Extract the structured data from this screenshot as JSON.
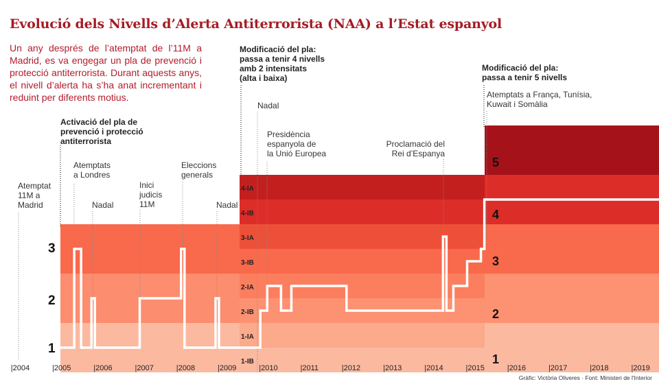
{
  "title": "Evolució dels Nivells d’Alerta Antiterrorista (NAA) a l’Estat espanyol",
  "intro": "Un any després de l’atemptat de l’11M a Madrid, es va engegar un pla de prevenció i protecció antiterrorista. Durant aquests anys, el nivell d’alerta ha s’ha anat incrementant i reduint per diferents motius.",
  "credit": "Gràfic: Victòria Oliveres · Font: Ministeri de l'Interior",
  "chart_data": {
    "type": "line",
    "step": true,
    "title": "Evolució dels Nivells d’Alerta Antiterrorista (NAA) a l’Estat espanyol",
    "x_ticks": [
      "2004",
      "2005",
      "2006",
      "2007",
      "2008",
      "2009",
      "2010",
      "2011",
      "2012",
      "2013",
      "2014",
      "2015",
      "2016",
      "2017",
      "2018",
      "2019"
    ],
    "grid": false,
    "line_color": "#ffffff",
    "series": [
      {
        "points": [
          [
            "2005-03",
            "1"
          ],
          [
            "2005-07",
            "3"
          ],
          [
            "2005-09",
            "1"
          ],
          [
            "2005-12",
            "2"
          ],
          [
            "2006-01",
            "1"
          ],
          [
            "2007-02",
            "2"
          ],
          [
            "2008-02",
            "3"
          ],
          [
            "2008-03",
            "1"
          ],
          [
            "2008-12",
            "2"
          ],
          [
            "2009-01",
            "1"
          ],
          [
            "2010-01",
            "2-IB"
          ],
          [
            "2010-03",
            "2-IA"
          ],
          [
            "2010-07",
            "2-IB"
          ],
          [
            "2010-10",
            "2-IA"
          ],
          [
            "2012-02",
            "2-IB"
          ],
          [
            "2014-06",
            "3-IA"
          ],
          [
            "2014-07",
            "2-IB"
          ],
          [
            "2014-09",
            "2-IA"
          ],
          [
            "2015-01",
            "3-IB"
          ],
          [
            "2015-05",
            "3"
          ],
          [
            "2015-06",
            "4"
          ],
          [
            "2019-09",
            "4"
          ]
        ]
      }
    ],
    "periods": [
      {
        "from": "2005-03",
        "to": "2009-07",
        "levels": [
          {
            "label": "1",
            "color": "#fbb9a0"
          },
          {
            "label": "2",
            "color": "#fc8d6f"
          },
          {
            "label": "3",
            "color": "#f9694b"
          }
        ]
      },
      {
        "from": "2009-07",
        "to": "2015-06",
        "levels": [
          {
            "label": "1-IB",
            "color": "#fbb9a0"
          },
          {
            "label": "1-IA",
            "color": "#fbaa8c"
          },
          {
            "label": "2-IB",
            "color": "#fc9272"
          },
          {
            "label": "2-IA",
            "color": "#fb7f5f"
          },
          {
            "label": "3-IB",
            "color": "#f9694b"
          },
          {
            "label": "3-IA",
            "color": "#ed5039"
          },
          {
            "label": "4-IB",
            "color": "#dc2d28"
          },
          {
            "label": "4-IA",
            "color": "#c41f1f"
          }
        ]
      },
      {
        "from": "2015-06",
        "to": "2019-09",
        "levels": [
          {
            "label": "1",
            "color": "#fbb9a0"
          },
          {
            "label": "2",
            "color": "#fc9272"
          },
          {
            "label": "3",
            "color": "#f9694b"
          },
          {
            "label": "4",
            "color": "#dc2d28"
          },
          {
            "label": "5",
            "color": "#a51219"
          }
        ]
      }
    ],
    "annotations": [
      {
        "date": "2004-03",
        "text": "Atemptat\n11M a\nMadrid"
      },
      {
        "date": "2005-03",
        "text": "Activació del pla de\nprevenció i protecció\nantiterrorista",
        "bold": true
      },
      {
        "date": "2005-07",
        "text": "Atemptats\na Londres"
      },
      {
        "date": "2005-12",
        "text": "Nadal"
      },
      {
        "date": "2007-02",
        "text": "Inici\njudicis\n11M"
      },
      {
        "date": "2008-02",
        "text": "Eleccions\ngenerals"
      },
      {
        "date": "2008-12",
        "text": "Nadal"
      },
      {
        "date": "2009-07",
        "text": "Modificació del pla:\npassa a tenir 4 nivells\namb 2 intensitats\n(alta i baixa)",
        "bold": true
      },
      {
        "date": "2009-12",
        "text": "Nadal"
      },
      {
        "date": "2010-03",
        "text": "Presidència\nespanyola de\nla Unió Europea"
      },
      {
        "date": "2014-06",
        "text": "Proclamació del\nRei d’Espanya"
      },
      {
        "date": "2015-06",
        "text": "Modificació del pla:\npassa a tenir 5 nivells",
        "bold": true
      },
      {
        "date": "2015-06",
        "text": "Atemptats a França, Tunísia,\nKuwait i Somàlia"
      }
    ]
  }
}
